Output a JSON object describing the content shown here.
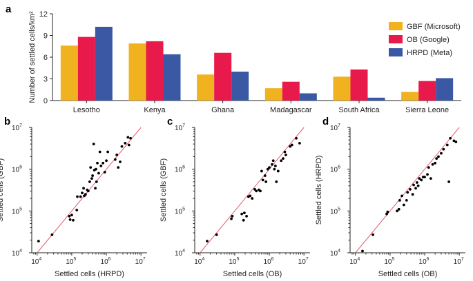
{
  "chart_data": [
    {
      "panel": "a",
      "type": "bar",
      "ylabel": "Number of settled cells/km²",
      "ylim": [
        0,
        12
      ],
      "yticks": [
        0,
        3,
        6,
        9,
        12
      ],
      "categories": [
        "Lesotho",
        "Kenya",
        "Ghana",
        "Madagascar",
        "South Africa",
        "Sierra Leone"
      ],
      "legend_position": "top-right",
      "series": [
        {
          "name": "GBF (Microsoft)",
          "color": "#f0b21e",
          "values": [
            7.6,
            7.9,
            3.6,
            1.7,
            3.3,
            1.2
          ]
        },
        {
          "name": "OB (Google)",
          "color": "#e8194b",
          "values": [
            8.8,
            8.2,
            6.6,
            2.6,
            4.3,
            2.7
          ]
        },
        {
          "name": "HRPD (Meta)",
          "color": "#3b58a4",
          "values": [
            10.2,
            6.4,
            4.0,
            1.0,
            0.4,
            3.1
          ]
        }
      ]
    },
    {
      "panel": "b",
      "type": "scatter",
      "xlabel": "Settled cells (HRPD)",
      "ylabel": "Settled cells (GBF)",
      "scale": "log",
      "xlim": [
        7000,
        15000000
      ],
      "ylim": [
        10000,
        10000000
      ],
      "identity_line": true,
      "points": [
        [
          11000,
          19000
        ],
        [
          27000,
          27000
        ],
        [
          85000,
          75000
        ],
        [
          90000,
          62000
        ],
        [
          100000,
          80000
        ],
        [
          110000,
          60000
        ],
        [
          140000,
          105000
        ],
        [
          145000,
          220000
        ],
        [
          180000,
          220000
        ],
        [
          200000,
          270000
        ],
        [
          220000,
          350000
        ],
        [
          230000,
          230000
        ],
        [
          250000,
          250000
        ],
        [
          280000,
          320000
        ],
        [
          300000,
          300000
        ],
        [
          330000,
          500000
        ],
        [
          350000,
          1100000
        ],
        [
          380000,
          600000
        ],
        [
          400000,
          700000
        ],
        [
          430000,
          4000000
        ],
        [
          450000,
          950000
        ],
        [
          480000,
          350000
        ],
        [
          500000,
          1000000
        ],
        [
          520000,
          500000
        ],
        [
          550000,
          1400000
        ],
        [
          600000,
          800000
        ],
        [
          650000,
          2600000
        ],
        [
          700000,
          1200000
        ],
        [
          800000,
          1400000
        ],
        [
          900000,
          850000
        ],
        [
          1000000,
          1600000
        ],
        [
          1100000,
          2600000
        ],
        [
          1800000,
          1700000
        ],
        [
          2000000,
          2200000
        ],
        [
          2200000,
          1100000
        ],
        [
          2500000,
          1500000
        ],
        [
          2800000,
          3500000
        ],
        [
          3500000,
          4200000
        ],
        [
          4200000,
          5800000
        ],
        [
          4500000,
          3800000
        ],
        [
          5000000,
          5500000
        ]
      ]
    },
    {
      "panel": "c",
      "type": "scatter",
      "xlabel": "Settled cells (OB)",
      "ylabel": "Settled cells (GBF)",
      "scale": "log",
      "xlim": [
        7000,
        15000000
      ],
      "ylim": [
        10000,
        10000000
      ],
      "identity_line": true,
      "points": [
        [
          16000,
          19000
        ],
        [
          30000,
          27000
        ],
        [
          80000,
          65000
        ],
        [
          85000,
          75000
        ],
        [
          160000,
          85000
        ],
        [
          180000,
          60000
        ],
        [
          190000,
          90000
        ],
        [
          220000,
          75000
        ],
        [
          250000,
          220000
        ],
        [
          280000,
          230000
        ],
        [
          320000,
          200000
        ],
        [
          380000,
          330000
        ],
        [
          420000,
          300000
        ],
        [
          500000,
          320000
        ],
        [
          550000,
          300000
        ],
        [
          600000,
          900000
        ],
        [
          650000,
          550000
        ],
        [
          750000,
          700000
        ],
        [
          800000,
          500000
        ],
        [
          900000,
          1000000
        ],
        [
          1000000,
          1100000
        ],
        [
          1200000,
          1300000
        ],
        [
          1300000,
          1600000
        ],
        [
          1400000,
          1000000
        ],
        [
          1500000,
          1200000
        ],
        [
          1600000,
          500000
        ],
        [
          1800000,
          900000
        ],
        [
          2200000,
          1600000
        ],
        [
          2500000,
          1800000
        ],
        [
          2800000,
          2600000
        ],
        [
          3000000,
          2200000
        ],
        [
          4000000,
          3500000
        ],
        [
          4500000,
          3800000
        ],
        [
          6000000,
          5500000
        ],
        [
          7500000,
          4200000
        ]
      ]
    },
    {
      "panel": "d",
      "type": "scatter",
      "xlabel": "Settled cells (OB)",
      "ylabel": "Settled cells (HRPD)",
      "scale": "log",
      "xlim": [
        7000,
        15000000
      ],
      "ylim": [
        10000,
        10000000
      ],
      "identity_line": true,
      "points": [
        [
          16000,
          11000
        ],
        [
          32000,
          27000
        ],
        [
          80000,
          85000
        ],
        [
          85000,
          95000
        ],
        [
          160000,
          100000
        ],
        [
          180000,
          110000
        ],
        [
          190000,
          180000
        ],
        [
          220000,
          230000
        ],
        [
          250000,
          140000
        ],
        [
          300000,
          180000
        ],
        [
          320000,
          280000
        ],
        [
          380000,
          330000
        ],
        [
          450000,
          250000
        ],
        [
          480000,
          420000
        ],
        [
          550000,
          350000
        ],
        [
          600000,
          480000
        ],
        [
          650000,
          400000
        ],
        [
          700000,
          600000
        ],
        [
          800000,
          550000
        ],
        [
          900000,
          650000
        ],
        [
          1000000,
          650000
        ],
        [
          1200000,
          750000
        ],
        [
          1300000,
          1100000
        ],
        [
          1500000,
          600000
        ],
        [
          1700000,
          1300000
        ],
        [
          2000000,
          1400000
        ],
        [
          2200000,
          1800000
        ],
        [
          2500000,
          2000000
        ],
        [
          3000000,
          2400000
        ],
        [
          3500000,
          3000000
        ],
        [
          4500000,
          3800000
        ],
        [
          5000000,
          500000
        ],
        [
          5500000,
          5500000
        ],
        [
          7000000,
          4800000
        ],
        [
          8000000,
          4500000
        ]
      ]
    }
  ]
}
